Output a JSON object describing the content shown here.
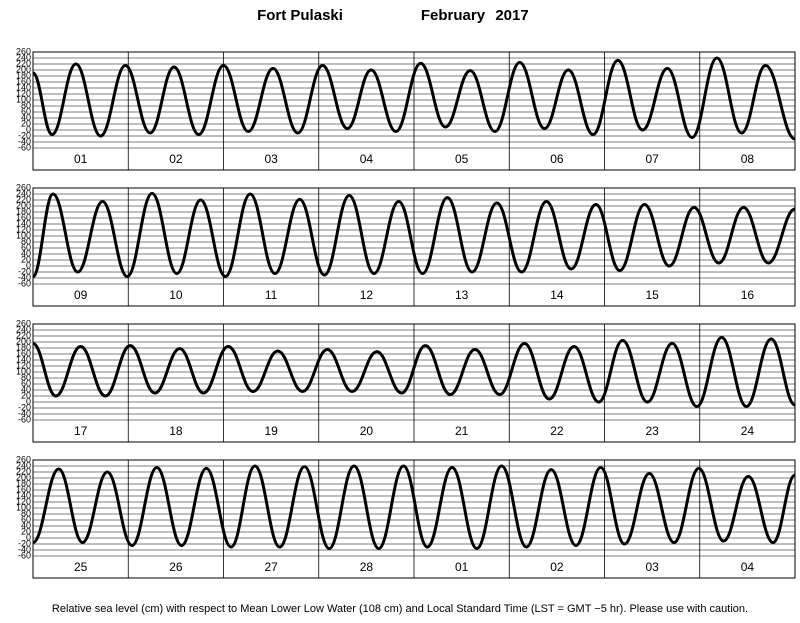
{
  "title": {
    "station": "Fort Pulaski",
    "month": "February",
    "year": "2017"
  },
  "footer": "Relative sea level (cm) with respect to Mean Lower Low Water (108 cm) and Local Standard Time (LST = GMT −5 hr). Please use with caution.",
  "chart_data": [
    {
      "type": "line",
      "color": "#000000",
      "grid": true,
      "xlim": [
        0,
        8
      ],
      "ylim": [
        -60,
        260
      ],
      "yticks": [
        260,
        240,
        220,
        200,
        180,
        160,
        140,
        120,
        100,
        80,
        60,
        40,
        20,
        0,
        -20,
        -40,
        -60
      ],
      "days": [
        "01",
        "02",
        "03",
        "04",
        "05",
        "06",
        "07",
        "08"
      ],
      "x": [
        0,
        0.2,
        0.45,
        0.71,
        0.97,
        1.23,
        1.48,
        1.74,
        2.0,
        2.26,
        2.52,
        2.78,
        3.04,
        3.3,
        3.55,
        3.81,
        4.07,
        4.33,
        4.59,
        4.85,
        5.11,
        5.37,
        5.62,
        5.88,
        6.14,
        6.4,
        6.66,
        6.92,
        7.18,
        7.44,
        7.69,
        8.0
      ],
      "values": [
        190,
        -15,
        220,
        -20,
        215,
        -10,
        210,
        -15,
        215,
        -5,
        205,
        -10,
        215,
        5,
        200,
        -5,
        222,
        10,
        198,
        -5,
        225,
        5,
        200,
        -15,
        232,
        0,
        205,
        -25,
        240,
        -10,
        215,
        -30
      ]
    },
    {
      "type": "line",
      "color": "#000000",
      "grid": true,
      "xlim": [
        0,
        8
      ],
      "ylim": [
        -60,
        260
      ],
      "yticks": [
        260,
        240,
        220,
        200,
        180,
        160,
        140,
        120,
        100,
        80,
        60,
        40,
        20,
        0,
        -20,
        -40,
        -60
      ],
      "days": [
        "09",
        "10",
        "11",
        "12",
        "13",
        "14",
        "15",
        "16"
      ],
      "x": [
        0,
        0.21,
        0.47,
        0.73,
        0.99,
        1.25,
        1.51,
        1.76,
        2.02,
        2.28,
        2.54,
        2.8,
        3.06,
        3.32,
        3.58,
        3.84,
        4.09,
        4.35,
        4.61,
        4.87,
        5.13,
        5.39,
        5.65,
        5.91,
        6.16,
        6.42,
        6.68,
        6.94,
        7.2,
        7.46,
        7.72,
        8.0
      ],
      "values": [
        -35,
        240,
        -20,
        215,
        -35,
        242,
        -25,
        220,
        -35,
        240,
        -25,
        222,
        -30,
        235,
        -25,
        215,
        -25,
        228,
        -20,
        210,
        -20,
        215,
        -10,
        205,
        -15,
        205,
        0,
        195,
        10,
        195,
        10,
        190
      ]
    },
    {
      "type": "line",
      "color": "#000000",
      "grid": true,
      "xlim": [
        0,
        8
      ],
      "ylim": [
        -60,
        260
      ],
      "yticks": [
        260,
        240,
        220,
        200,
        180,
        160,
        140,
        120,
        100,
        80,
        60,
        40,
        20,
        0,
        -20,
        -40,
        -60
      ],
      "days": [
        "17",
        "18",
        "19",
        "20",
        "21",
        "22",
        "23",
        "24"
      ],
      "x": [
        0,
        0.24,
        0.5,
        0.76,
        1.02,
        1.28,
        1.54,
        1.79,
        2.05,
        2.31,
        2.57,
        2.83,
        3.09,
        3.35,
        3.61,
        3.87,
        4.12,
        4.38,
        4.64,
        4.9,
        5.16,
        5.42,
        5.68,
        5.94,
        6.19,
        6.45,
        6.71,
        6.97,
        7.23,
        7.49,
        7.75,
        8.0
      ],
      "values": [
        195,
        20,
        185,
        20,
        188,
        30,
        178,
        30,
        185,
        35,
        170,
        35,
        175,
        35,
        168,
        30,
        188,
        25,
        175,
        25,
        195,
        10,
        185,
        0,
        205,
        0,
        195,
        -15,
        215,
        -15,
        210,
        -10
      ]
    },
    {
      "type": "line",
      "color": "#000000",
      "grid": true,
      "xlim": [
        0,
        8
      ],
      "ylim": [
        -60,
        260
      ],
      "yticks": [
        260,
        240,
        220,
        200,
        180,
        160,
        140,
        120,
        100,
        80,
        60,
        40,
        20,
        0,
        -20,
        -40,
        -60
      ],
      "days": [
        "25",
        "26",
        "27",
        "28",
        "01",
        "02",
        "03",
        "04"
      ],
      "x": [
        0,
        0.27,
        0.52,
        0.78,
        1.04,
        1.3,
        1.56,
        1.82,
        2.08,
        2.33,
        2.59,
        2.85,
        3.11,
        3.37,
        3.63,
        3.89,
        4.14,
        4.4,
        4.66,
        4.92,
        5.18,
        5.44,
        5.7,
        5.96,
        6.21,
        6.47,
        6.73,
        6.99,
        7.25,
        7.51,
        7.77,
        8.0
      ],
      "values": [
        -15,
        230,
        -15,
        220,
        -25,
        235,
        -25,
        232,
        -30,
        240,
        -30,
        238,
        -35,
        240,
        -35,
        240,
        -30,
        235,
        -35,
        240,
        -30,
        228,
        -25,
        235,
        -20,
        215,
        -15,
        232,
        -10,
        205,
        -15,
        210
      ]
    }
  ]
}
